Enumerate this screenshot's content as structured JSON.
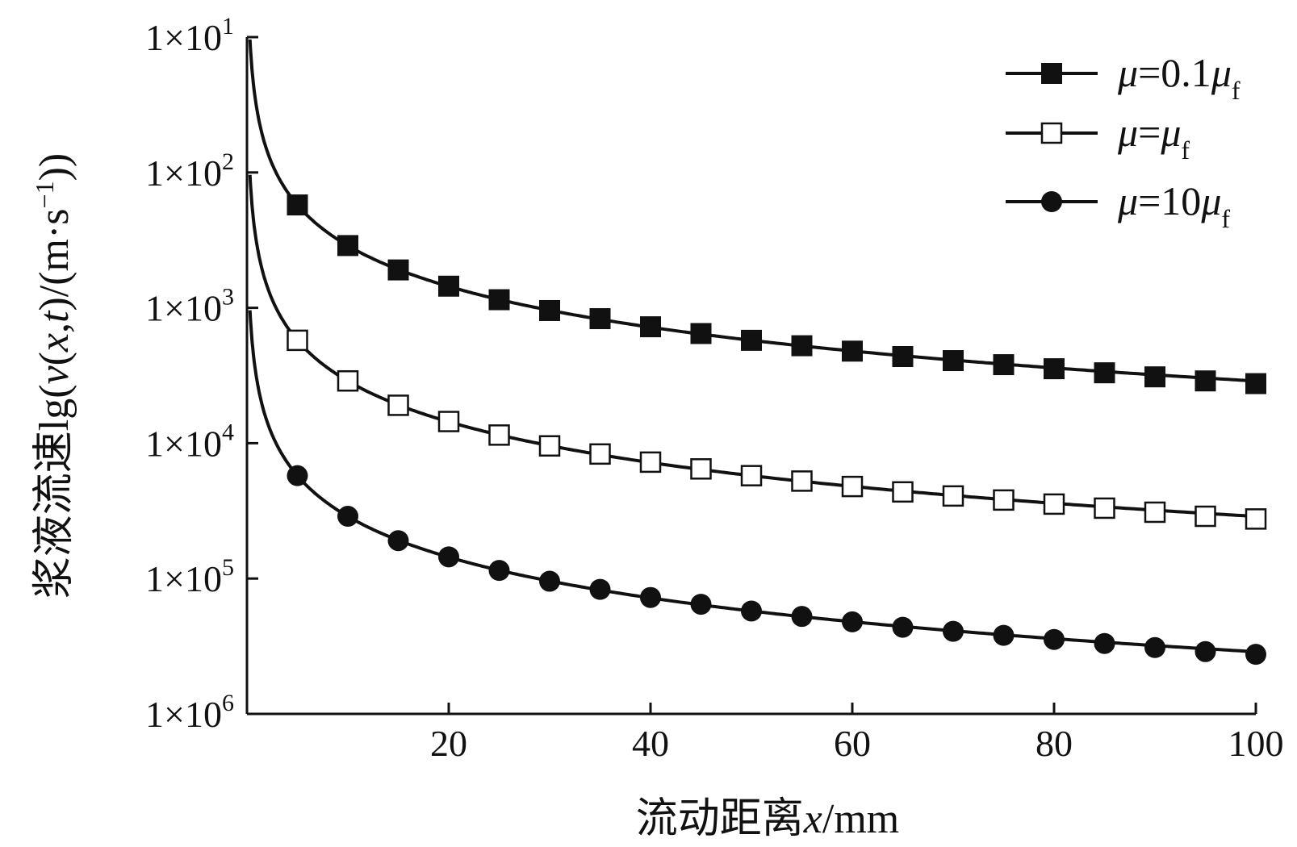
{
  "chart_data": {
    "type": "line",
    "xlabel": {
      "prefix": "流动距离",
      "var": "x",
      "unit": "/mm"
    },
    "ylabel": {
      "prefix": "浆液流速lg(",
      "v": "v",
      "open": "(",
      "x": "x",
      "comma": ",",
      "t": "t",
      "close": ")/(m·s",
      "sup": "−1",
      "end": "))"
    },
    "xlim": [
      0,
      100
    ],
    "x_ticks": [
      20,
      40,
      60,
      80,
      100
    ],
    "y_tick_labels": [
      {
        "base": "1×10",
        "exp": "1",
        "level": 1
      },
      {
        "base": "1×10",
        "exp": "2",
        "level": 2
      },
      {
        "base": "1×10",
        "exp": "3",
        "level": 3
      },
      {
        "base": "1×10",
        "exp": "4",
        "level": 4
      },
      {
        "base": "1×10",
        "exp": "5",
        "level": 5
      },
      {
        "base": "1×10",
        "exp": "6",
        "level": 6
      }
    ],
    "grid": false,
    "legend_position": "top-right",
    "series": [
      {
        "name": "μ=0.1μf",
        "legend": {
          "mu": "μ",
          "eq": "=0.1",
          "mu2": "μ",
          "sub": "f"
        },
        "marker": "filled-square",
        "x": [
          5,
          10,
          15,
          20,
          25,
          30,
          35,
          40,
          45,
          50,
          55,
          60,
          65,
          70,
          75,
          80,
          85,
          90,
          95,
          100
        ],
        "level": [
          2.24,
          2.54,
          2.72,
          2.84,
          2.94,
          3.02,
          3.08,
          3.14,
          3.19,
          3.24,
          3.28,
          3.32,
          3.36,
          3.39,
          3.42,
          3.45,
          3.48,
          3.51,
          3.54,
          3.56
        ]
      },
      {
        "name": "μ=μf",
        "legend": {
          "mu": "μ",
          "eq": "=",
          "mu2": "μ",
          "sub": "f"
        },
        "marker": "open-square",
        "x": [
          5,
          10,
          15,
          20,
          25,
          30,
          35,
          40,
          45,
          50,
          55,
          60,
          65,
          70,
          75,
          80,
          85,
          90,
          95,
          100
        ],
        "level": [
          3.24,
          3.54,
          3.72,
          3.84,
          3.94,
          4.02,
          4.08,
          4.14,
          4.19,
          4.24,
          4.28,
          4.32,
          4.36,
          4.39,
          4.42,
          4.45,
          4.48,
          4.51,
          4.54,
          4.56
        ]
      },
      {
        "name": "μ=10μf",
        "legend": {
          "mu": "μ",
          "eq": "=10",
          "mu2": "μ",
          "sub": "f"
        },
        "marker": "filled-circle",
        "x": [
          5,
          10,
          15,
          20,
          25,
          30,
          35,
          40,
          45,
          50,
          55,
          60,
          65,
          70,
          75,
          80,
          85,
          90,
          95,
          100
        ],
        "level": [
          4.24,
          4.54,
          4.72,
          4.84,
          4.94,
          5.02,
          5.08,
          5.14,
          5.19,
          5.24,
          5.28,
          5.32,
          5.36,
          5.39,
          5.42,
          5.45,
          5.48,
          5.51,
          5.54,
          5.56
        ]
      }
    ]
  }
}
